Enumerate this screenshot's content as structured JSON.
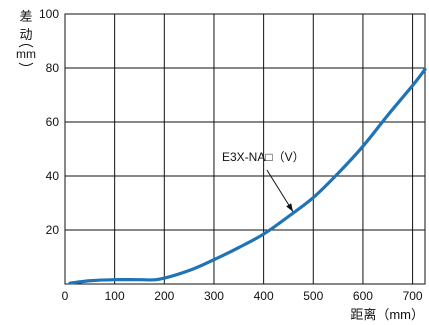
{
  "chart_data": {
    "type": "line",
    "xlabel": "距离（mm）",
    "ylabel_chars": [
      "差",
      "动",
      "mm"
    ],
    "xlim": [
      0,
      725
    ],
    "ylim": [
      0,
      100
    ],
    "x_ticks": [
      0,
      100,
      200,
      300,
      400,
      500,
      600,
      700
    ],
    "y_ticks": [
      20,
      40,
      60,
      80,
      100
    ],
    "grid": true,
    "series": [
      {
        "name": "E3X-NA□（V）",
        "color": "#1f73b7",
        "x": [
          10,
          50,
          100,
          150,
          190,
          250,
          300,
          350,
          400,
          450,
          500,
          550,
          600,
          650,
          700,
          725
        ],
        "y": [
          0.3,
          1.2,
          1.6,
          1.6,
          1.8,
          5.0,
          9.0,
          13.5,
          18.5,
          25.0,
          32.0,
          41.0,
          51.0,
          62.5,
          73.5,
          79.5
        ]
      }
    ],
    "annotation": {
      "text": "E3X-NA□（V）",
      "points_to_x": 455
    }
  }
}
